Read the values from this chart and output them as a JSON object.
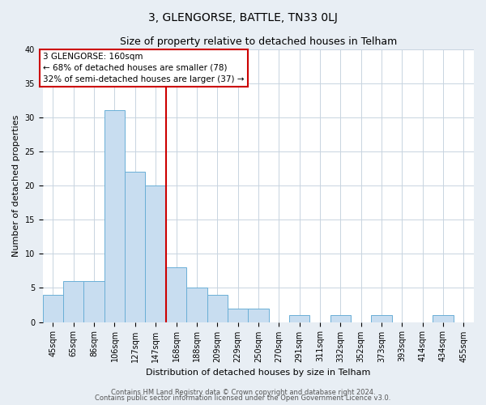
{
  "title": "3, GLENGORSE, BATTLE, TN33 0LJ",
  "subtitle": "Size of property relative to detached houses in Telham",
  "xlabel": "Distribution of detached houses by size in Telham",
  "ylabel": "Number of detached properties",
  "bin_labels": [
    "45sqm",
    "65sqm",
    "86sqm",
    "106sqm",
    "127sqm",
    "147sqm",
    "168sqm",
    "188sqm",
    "209sqm",
    "229sqm",
    "250sqm",
    "270sqm",
    "291sqm",
    "311sqm",
    "332sqm",
    "352sqm",
    "373sqm",
    "393sqm",
    "414sqm",
    "434sqm",
    "455sqm"
  ],
  "bar_heights": [
    4,
    6,
    6,
    31,
    22,
    20,
    8,
    5,
    4,
    2,
    2,
    0,
    1,
    0,
    1,
    0,
    1,
    0,
    0,
    1,
    0
  ],
  "bar_color": "#c8ddf0",
  "bar_edge_color": "#6aafd6",
  "vline_x_index": 5.5,
  "vline_color": "#cc0000",
  "annotation_line1": "3 GLENGORSE: 160sqm",
  "annotation_line2": "← 68% of detached houses are smaller (78)",
  "annotation_line3": "32% of semi-detached houses are larger (37) →",
  "annotation_box_color": "#ffffff",
  "annotation_box_edge": "#cc0000",
  "ylim": [
    0,
    40
  ],
  "yticks": [
    0,
    5,
    10,
    15,
    20,
    25,
    30,
    35,
    40
  ],
  "footer1": "Contains HM Land Registry data © Crown copyright and database right 2024.",
  "footer2": "Contains public sector information licensed under the Open Government Licence v3.0.",
  "background_color": "#e8eef4",
  "plot_background": "#ffffff",
  "grid_color": "#c8d4e0",
  "title_fontsize": 10,
  "subtitle_fontsize": 9,
  "axis_label_fontsize": 8,
  "tick_fontsize": 7,
  "annotation_fontsize": 7.5,
  "footer_fontsize": 6
}
